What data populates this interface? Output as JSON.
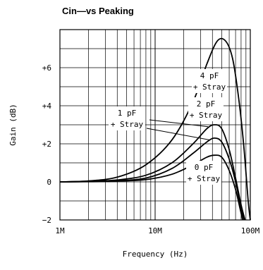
{
  "chart_data": {
    "type": "line",
    "title": "Cin—vs Peaking",
    "xlabel": "Frequency (Hz)",
    "ylabel": "Gain (dB)",
    "xscale": "log",
    "xlim": [
      1000000,
      100000000
    ],
    "ylim": [
      -2,
      8
    ],
    "x_ticks": [
      {
        "value": 1000000,
        "label": "1M"
      },
      {
        "value": 10000000,
        "label": "10M"
      },
      {
        "value": 100000000,
        "label": "100M"
      }
    ],
    "y_ticks": [
      {
        "value": 6,
        "label": "+6"
      },
      {
        "value": 4,
        "label": "+4"
      },
      {
        "value": 2,
        "label": "+2"
      },
      {
        "value": 0,
        "label": "0"
      },
      {
        "value": -2,
        "label": "−2"
      }
    ],
    "grid": true,
    "series": [
      {
        "name": "4 pF + Stray",
        "points": [
          [
            1000000,
            0
          ],
          [
            2000000,
            0.05
          ],
          [
            4000000,
            0.25
          ],
          [
            8000000,
            0.9
          ],
          [
            15000000,
            2.2
          ],
          [
            25000000,
            4.2
          ],
          [
            35000000,
            6.2
          ],
          [
            45000000,
            7.4
          ],
          [
            55000000,
            7.4
          ],
          [
            65000000,
            6.5
          ],
          [
            75000000,
            4.5
          ],
          [
            85000000,
            2.0
          ],
          [
            95000000,
            -1.0
          ],
          [
            100000000,
            -2.0
          ]
        ]
      },
      {
        "name": "2 pF + Stray",
        "points": [
          [
            1000000,
            0
          ],
          [
            2000000,
            0.03
          ],
          [
            4000000,
            0.1
          ],
          [
            8000000,
            0.35
          ],
          [
            15000000,
            1.0
          ],
          [
            25000000,
            2.0
          ],
          [
            35000000,
            2.8
          ],
          [
            42000000,
            3.0
          ],
          [
            50000000,
            2.8
          ],
          [
            60000000,
            1.7
          ],
          [
            70000000,
            0.2
          ],
          [
            80000000,
            -1.2
          ],
          [
            88000000,
            -2.0
          ]
        ]
      },
      {
        "name": "1 pF + Stray",
        "points": [
          [
            1000000,
            0
          ],
          [
            2000000,
            0.02
          ],
          [
            4000000,
            0.06
          ],
          [
            8000000,
            0.2
          ],
          [
            15000000,
            0.7
          ],
          [
            25000000,
            1.5
          ],
          [
            35000000,
            2.1
          ],
          [
            42000000,
            2.3
          ],
          [
            50000000,
            2.1
          ],
          [
            60000000,
            1.2
          ],
          [
            70000000,
            0.0
          ],
          [
            80000000,
            -1.4
          ],
          [
            86000000,
            -2.0
          ]
        ]
      },
      {
        "name": "0 pF + Stray",
        "points": [
          [
            1000000,
            0
          ],
          [
            2000000,
            0.01
          ],
          [
            4000000,
            0.04
          ],
          [
            8000000,
            0.12
          ],
          [
            15000000,
            0.4
          ],
          [
            25000000,
            0.9
          ],
          [
            35000000,
            1.3
          ],
          [
            42000000,
            1.4
          ],
          [
            50000000,
            1.3
          ],
          [
            60000000,
            0.6
          ],
          [
            70000000,
            -0.4
          ],
          [
            78000000,
            -1.4
          ],
          [
            83000000,
            -2.0
          ]
        ]
      }
    ],
    "annotations": [
      {
        "line1": "4 pF",
        "line2": "+ Stray"
      },
      {
        "line1": "2 pF",
        "line2": "+ Stray"
      },
      {
        "line1": "1 pF",
        "line2": "+ Stray"
      },
      {
        "line1": "0 pF",
        "line2": "+ Stray"
      }
    ]
  }
}
